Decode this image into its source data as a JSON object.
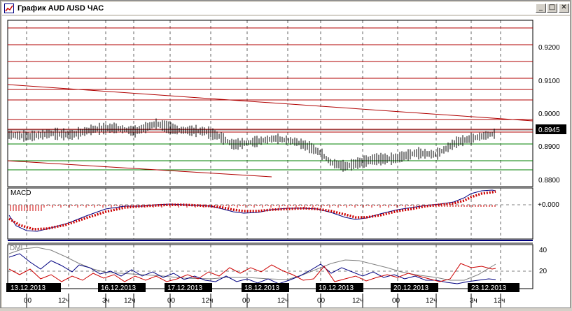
{
  "window": {
    "title": "График AUD /USD  ЧАС",
    "icon": "chart-line-icon",
    "controls": {
      "minimize": "_",
      "maximize": "□",
      "close": "✕"
    }
  },
  "price_axis": {
    "ticks": [
      "0.9200",
      "0.9100",
      "0.9000",
      "0.8900",
      "0.8800"
    ],
    "current_price": "0.8945"
  },
  "macd_panel": {
    "label": "MACD",
    "axis_tick": "+0.000"
  },
  "dmi_panel": {
    "label": "DMI",
    "axis_ticks": [
      "40",
      "20"
    ]
  },
  "time_axis": {
    "dates": [
      "13.12.2013",
      "16.12.2013",
      "17.12.2013",
      "18.12.2013",
      "19.12.2013",
      "20.12.2013",
      "23.12.2013"
    ],
    "hour_labels": [
      {
        "a": "00",
        "b": "12ч"
      },
      {
        "a": "3ч",
        "b": "12ч"
      },
      {
        "a": "00",
        "b": "12ч"
      },
      {
        "a": "00",
        "b": "12ч"
      },
      {
        "a": "00",
        "b": "12ч"
      },
      {
        "a": "00",
        "b": "12ч"
      },
      {
        "a": "3ч",
        "b": "12ч"
      }
    ]
  },
  "colors": {
    "resistance": "#b00000",
    "support": "#008000",
    "macd_signal": "#cc0000",
    "macd_line": "#000080",
    "dmi_plus": "#000080",
    "dmi_minus": "#cc0000",
    "adx": "#808080"
  }
}
